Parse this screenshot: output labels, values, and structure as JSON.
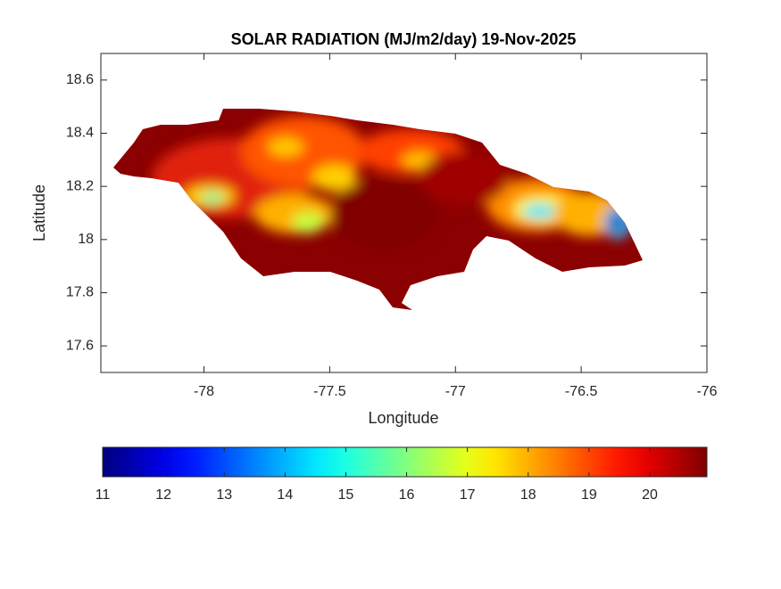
{
  "chart_data": {
    "type": "map",
    "title": "SOLAR RADIATION (MJ/m2/day) 19-Nov-2025",
    "xlabel": "Longitude",
    "ylabel": "Latitude",
    "xlim": [
      -78.41,
      -76
    ],
    "ylim": [
      17.5,
      18.7
    ],
    "xticks": [
      -78,
      -77.5,
      -77,
      -76.5,
      -76
    ],
    "yticks": [
      17.6,
      17.8,
      18,
      18.2,
      18.4,
      18.6
    ],
    "colorbar": {
      "colormap": "jet",
      "lim": [
        11,
        20.94
      ],
      "ticks": [
        11,
        12,
        13,
        14,
        15,
        16,
        17,
        18,
        19,
        20
      ]
    }
  }
}
